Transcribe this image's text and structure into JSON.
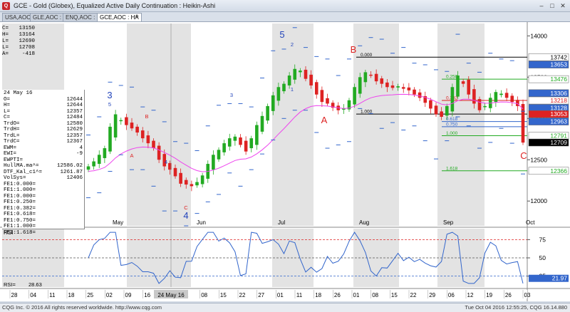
{
  "window": {
    "title": "GCE - Gold (Globex), Equalized Active Daily Continuation : Heikin-Ashi",
    "app_icon": "Q"
  },
  "tabs": [
    {
      "label": "USA,AOC"
    },
    {
      "label": "GLE,AOC : HA"
    },
    {
      "label": "ENQ,AOC : HA"
    },
    {
      "label": "GCE,AOC : HA"
    }
  ],
  "tab_add": "+",
  "info": [
    {
      "k": "C=",
      "v": "13150"
    },
    {
      "k": "H=",
      "v": "13164"
    },
    {
      "k": "L=",
      "v": "12690"
    },
    {
      "k": "L=",
      "v": "12708"
    },
    {
      "k": "A=",
      "v": "-418"
    }
  ],
  "stats": {
    "date": "24 May 16",
    "rows": [
      {
        "k": "O=",
        "v": "12644"
      },
      {
        "k": "H=",
        "v": "12644"
      },
      {
        "k": "L=",
        "v": "12357"
      },
      {
        "k": "C=",
        "v": "12484"
      },
      {
        "k": "TrdO=",
        "v": "12580"
      },
      {
        "k": "TrdH=",
        "v": "12629"
      },
      {
        "k": "TrdL=",
        "v": "12357"
      },
      {
        "k": "TrdC=",
        "v": "12367"
      },
      {
        "k": "EWM=",
        "v": "4"
      },
      {
        "k": "EWI=",
        "v": "-9"
      },
      {
        "k": "EWPTI=",
        "v": ""
      },
      {
        "k": "HullMA.ma^=",
        "v": "12586.02"
      },
      {
        "k": "DTF_Kal_c1^=",
        "v": "1261.87"
      },
      {
        "k": "VolSys=",
        "v": "12406"
      },
      {
        "k": "FE1:0.000=",
        "v": ""
      },
      {
        "k": "FE1:1.000=",
        "v": ""
      },
      {
        "k": "FE1:0.000=",
        "v": ""
      },
      {
        "k": "FE1:0.250=",
        "v": ""
      },
      {
        "k": "FE1:0.382=",
        "v": ""
      },
      {
        "k": "FE1:0.618=",
        "v": ""
      },
      {
        "k": "FE1:0.750=",
        "v": ""
      },
      {
        "k": "FE1:1.000=",
        "v": ""
      },
      {
        "k": "FE1:1.618=",
        "v": ""
      }
    ]
  },
  "chart_data": {
    "type": "candlestick",
    "main_ylim": [
      11700,
      14150
    ],
    "y_ticks": [
      12000,
      12500,
      13000,
      13500,
      14000
    ],
    "y_tick_labels": [
      "12000",
      "12500",
      "13000",
      "13500",
      "14000"
    ],
    "x_labels": [
      "28",
      "04",
      "11",
      "18",
      "25",
      "02",
      "09",
      "16",
      "23",
      "01",
      "08",
      "15",
      "22",
      "27",
      "01",
      "11",
      "18",
      "26",
      "01",
      "08",
      "15",
      "22",
      "29",
      "06",
      "12",
      "19",
      "26",
      "03"
    ],
    "month_labels": [
      "May",
      "Jun",
      "Jul",
      "Aug",
      "Sep",
      "Oct"
    ],
    "date_highlight": "24 May 16",
    "ohlc_candles_note": "Heikin-Ashi daily",
    "closes": [
      12420,
      12480,
      12560,
      12640,
      12900,
      13050,
      12980,
      12920,
      12880,
      12830,
      12760,
      12700,
      12640,
      12500,
      12420,
      12380,
      12300,
      12210,
      12200,
      12180,
      12230,
      12310,
      12450,
      12560,
      12620,
      12700,
      12760,
      12780,
      12680,
      12600,
      12760,
      12920,
      13030,
      13150,
      13280,
      13380,
      13420,
      13520,
      13600,
      13580,
      13480,
      13400,
      13290,
      13200,
      13180,
      13130,
      13100,
      13120,
      13220,
      13380,
      13500,
      13560,
      13520,
      13450,
      13420,
      13380,
      13370,
      13390,
      13360,
      13340,
      13290,
      13250,
      13190,
      13120,
      13050,
      13020,
      13150,
      13380,
      13520,
      13420,
      13290,
      13180,
      13100,
      13150,
      13250,
      13320,
      13300,
      13250,
      13200,
      13150,
      12708
    ],
    "price_labels": [
      {
        "value": 13742,
        "text": "13742",
        "bg": "#ffffff",
        "fg": "#000000"
      },
      {
        "value": 13653,
        "text": "13653",
        "bg": "#3366cc",
        "fg": "#ffffff"
      },
      {
        "value": 13476,
        "text": "13476",
        "bg": "#ffffff",
        "fg": "#22aa22"
      },
      {
        "value": 13306,
        "text": "13306",
        "bg": "#3366cc",
        "fg": "#ffffff"
      },
      {
        "value": 13218,
        "text": "13218",
        "bg": "#ffffff",
        "fg": "#dd2222"
      },
      {
        "value": 13128,
        "text": "13128",
        "bg": "#3366cc",
        "fg": "#ffffff"
      },
      {
        "value": 13053,
        "text": "13053",
        "bg": "#dd2222",
        "fg": "#ffffff"
      },
      {
        "value": 12963,
        "text": "12963",
        "bg": "#3366cc",
        "fg": "#ffffff"
      },
      {
        "value": 12791,
        "text": "12791",
        "bg": "#ffffff",
        "fg": "#22aa22"
      },
      {
        "value": 12709,
        "text": "12709",
        "bg": "#000000",
        "fg": "#ffffff"
      },
      {
        "value": 12366,
        "text": "12366",
        "bg": "#ffffff",
        "fg": "#22aa22"
      }
    ],
    "fib_levels": [
      {
        "value": 13742,
        "label": "0.000",
        "color": "#000000"
      },
      {
        "value": 13476,
        "label": "0.250",
        "color": "#22aa22"
      },
      {
        "value": 13218,
        "label": "0.382",
        "color": "#dd2222"
      },
      {
        "value": 13053,
        "label": "1.000",
        "color": "#000000"
      },
      {
        "value": 12963,
        "label": "0.618",
        "color": "#3366cc"
      },
      {
        "value": 12900,
        "label": "0.750",
        "color": "#3366cc"
      },
      {
        "value": 12791,
        "label": "1.000",
        "color": "#22aa22"
      },
      {
        "value": 12366,
        "label": "1.618",
        "color": "#22aa22"
      }
    ],
    "wave_labels": [
      {
        "text": "3",
        "color": "#2244bb",
        "size": "big"
      },
      {
        "text": "4",
        "color": "#2244bb",
        "size": "big"
      },
      {
        "text": "5",
        "color": "#2244bb",
        "size": "big"
      },
      {
        "text": "B",
        "color": "#dd2222",
        "size": "big"
      },
      {
        "text": "A",
        "color": "#dd2222",
        "size": "big"
      },
      {
        "text": "C",
        "color": "#dd2222",
        "size": "big"
      },
      {
        "text": "5",
        "color": "#2244bb",
        "size": "small"
      },
      {
        "text": "4",
        "color": "#2244bb",
        "size": "small"
      },
      {
        "text": "3",
        "color": "#2244bb",
        "size": "small"
      },
      {
        "text": "2",
        "color": "#2244bb",
        "size": "small"
      },
      {
        "text": "1",
        "color": "#2244bb",
        "size": "small"
      },
      {
        "text": "B",
        "color": "#dd2222",
        "size": "small"
      },
      {
        "text": "A",
        "color": "#dd2222",
        "size": "small"
      },
      {
        "text": "C",
        "color": "#dd2222",
        "size": "small"
      }
    ],
    "rsi": {
      "label": "RSI",
      "ticks": [
        25,
        50,
        75
      ],
      "current": "21.97",
      "value_label": "28.63",
      "ylim": [
        10,
        90
      ]
    }
  },
  "status": {
    "left": "CQG Inc. © 2016 All rights reserved worldwide. http://www.cqg.com",
    "right": "Tue Oct 04 2016 12:55:25, CQG 16.14.880"
  },
  "colors": {
    "up": "#22aa22",
    "down": "#dd2222",
    "ma": "#ee44ee",
    "band": "#3366cc",
    "stripe": "#e3e3e3"
  }
}
